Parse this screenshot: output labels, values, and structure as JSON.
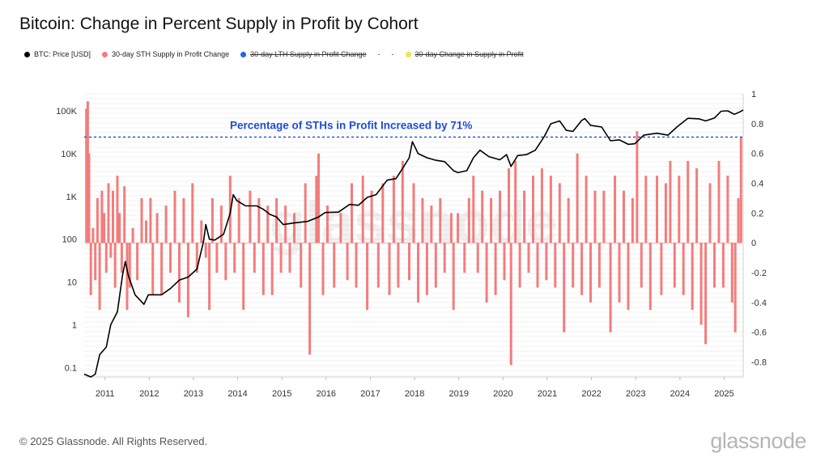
{
  "page": {
    "title": "Bitcoin: Change in Percent Supply in Profit by Cohort",
    "footer": "© 2025 Glassnode. All Rights Reserved.",
    "brand": "glassnode",
    "watermark": "glassnode"
  },
  "legend": [
    {
      "label": "BTC: Price [USD]",
      "color": "#000000",
      "disabled": false
    },
    {
      "label": "30-day STH Supply in Profit Change",
      "color": "#f47c7c",
      "disabled": false
    },
    {
      "label": "30-day LTH Supply in Profit Change",
      "color": "#2563eb",
      "disabled": true
    },
    {
      "label": "-",
      "color": "",
      "disabled": false,
      "separator": true
    },
    {
      "label": "-",
      "color": "",
      "disabled": false,
      "separator": true
    },
    {
      "label": "30-day Change in Supply in Profit",
      "color": "#f7e14b",
      "disabled": true
    }
  ],
  "chart_data": {
    "type": "line",
    "title": "Bitcoin: Change in Percent Supply in Profit by Cohort",
    "x_ticks": [
      "2011",
      "2012",
      "2013",
      "2014",
      "2015",
      "2016",
      "2017",
      "2018",
      "2019",
      "2020",
      "2021",
      "2022",
      "2023",
      "2024",
      "2025"
    ],
    "x_range": [
      2010.55,
      2025.45
    ],
    "left_axis": {
      "scale": "log",
      "ticks": [
        "0.1",
        "1",
        "10",
        "100",
        "1K",
        "10K",
        "100K"
      ],
      "tick_values": [
        0.1,
        1,
        10,
        100,
        1000,
        10000,
        100000
      ],
      "range": [
        0.06,
        250000
      ]
    },
    "right_axis": {
      "scale": "linear",
      "ticks": [
        "-0.8",
        "-0.6",
        "-0.4",
        "-0.2",
        "0",
        "0.2",
        "0.4",
        "0.6",
        "0.8",
        "1"
      ],
      "tick_values": [
        -0.8,
        -0.6,
        -0.4,
        -0.2,
        0,
        0.2,
        0.4,
        0.6,
        0.8,
        1
      ],
      "range": [
        -0.9,
        1.0
      ]
    },
    "annotation": {
      "text": "Percentage of STHs in Profit Increased by 71%",
      "value": 0.71,
      "color": "#1d4ed8"
    },
    "series": [
      {
        "name": "BTC: Price [USD]",
        "axis": "left",
        "color": "#000000",
        "points": [
          [
            2010.55,
            0.07
          ],
          [
            2010.7,
            0.06
          ],
          [
            2010.8,
            0.07
          ],
          [
            2010.9,
            0.2
          ],
          [
            2011.05,
            0.3
          ],
          [
            2011.15,
            1
          ],
          [
            2011.3,
            2
          ],
          [
            2011.42,
            15
          ],
          [
            2011.48,
            30
          ],
          [
            2011.55,
            14
          ],
          [
            2011.7,
            5
          ],
          [
            2011.9,
            3
          ],
          [
            2012.0,
            5
          ],
          [
            2012.3,
            5
          ],
          [
            2012.5,
            7
          ],
          [
            2012.7,
            11
          ],
          [
            2012.9,
            13
          ],
          [
            2013.1,
            20
          ],
          [
            2013.25,
            90
          ],
          [
            2013.3,
            220
          ],
          [
            2013.38,
            100
          ],
          [
            2013.5,
            95
          ],
          [
            2013.7,
            130
          ],
          [
            2013.85,
            400
          ],
          [
            2013.92,
            1100
          ],
          [
            2014.0,
            800
          ],
          [
            2014.2,
            600
          ],
          [
            2014.45,
            600
          ],
          [
            2014.6,
            500
          ],
          [
            2014.75,
            380
          ],
          [
            2014.9,
            330
          ],
          [
            2015.05,
            220
          ],
          [
            2015.3,
            240
          ],
          [
            2015.6,
            260
          ],
          [
            2015.85,
            330
          ],
          [
            2016.0,
            420
          ],
          [
            2016.3,
            430
          ],
          [
            2016.55,
            650
          ],
          [
            2016.75,
            620
          ],
          [
            2016.95,
            950
          ],
          [
            2017.15,
            1100
          ],
          [
            2017.4,
            2400
          ],
          [
            2017.6,
            2600
          ],
          [
            2017.75,
            4500
          ],
          [
            2017.9,
            8000
          ],
          [
            2017.97,
            19000
          ],
          [
            2018.1,
            10000
          ],
          [
            2018.3,
            8000
          ],
          [
            2018.5,
            7000
          ],
          [
            2018.7,
            6500
          ],
          [
            2018.9,
            4000
          ],
          [
            2019.0,
            3600
          ],
          [
            2019.2,
            4000
          ],
          [
            2019.35,
            8000
          ],
          [
            2019.5,
            12000
          ],
          [
            2019.7,
            8500
          ],
          [
            2019.95,
            7200
          ],
          [
            2020.1,
            9500
          ],
          [
            2020.2,
            5000
          ],
          [
            2020.35,
            9000
          ],
          [
            2020.55,
            9500
          ],
          [
            2020.75,
            12000
          ],
          [
            2020.95,
            25000
          ],
          [
            2021.1,
            50000
          ],
          [
            2021.3,
            58000
          ],
          [
            2021.45,
            35000
          ],
          [
            2021.6,
            33000
          ],
          [
            2021.8,
            60000
          ],
          [
            2021.87,
            66000
          ],
          [
            2022.0,
            46000
          ],
          [
            2022.25,
            42000
          ],
          [
            2022.45,
            20000
          ],
          [
            2022.65,
            21000
          ],
          [
            2022.85,
            16500
          ],
          [
            2023.0,
            17000
          ],
          [
            2023.2,
            27000
          ],
          [
            2023.5,
            30000
          ],
          [
            2023.75,
            27000
          ],
          [
            2023.95,
            42000
          ],
          [
            2024.2,
            67000
          ],
          [
            2024.45,
            65000
          ],
          [
            2024.6,
            58000
          ],
          [
            2024.8,
            68000
          ],
          [
            2024.95,
            98000
          ],
          [
            2025.1,
            100000
          ],
          [
            2025.25,
            83000
          ],
          [
            2025.38,
            95000
          ],
          [
            2025.45,
            105000
          ]
        ]
      },
      {
        "name": "30-day STH Supply in Profit Change",
        "axis": "right",
        "color": "#f47c7c",
        "points": [
          [
            2010.6,
            0.9
          ],
          [
            2010.63,
            0.95
          ],
          [
            2010.66,
            0.6
          ],
          [
            2010.7,
            -0.35
          ],
          [
            2010.75,
            0.1
          ],
          [
            2010.8,
            -0.25
          ],
          [
            2010.85,
            0.3
          ],
          [
            2010.9,
            -0.45
          ],
          [
            2010.95,
            0.35
          ],
          [
            2011.0,
            0.2
          ],
          [
            2011.05,
            -0.2
          ],
          [
            2011.1,
            0.4
          ],
          [
            2011.15,
            -0.1
          ],
          [
            2011.2,
            0.35
          ],
          [
            2011.25,
            -0.3
          ],
          [
            2011.3,
            0.45
          ],
          [
            2011.35,
            0.2
          ],
          [
            2011.4,
            -0.2
          ],
          [
            2011.46,
            0.38
          ],
          [
            2011.52,
            -0.45
          ],
          [
            2011.58,
            -0.3
          ],
          [
            2011.65,
            0.1
          ],
          [
            2011.75,
            -0.25
          ],
          [
            2011.85,
            0.3
          ],
          [
            2011.95,
            0.15
          ],
          [
            2012.05,
            0.3
          ],
          [
            2012.1,
            -0.35
          ],
          [
            2012.2,
            0.2
          ],
          [
            2012.3,
            -0.35
          ],
          [
            2012.4,
            0.25
          ],
          [
            2012.5,
            -0.2
          ],
          [
            2012.6,
            0.35
          ],
          [
            2012.7,
            -0.4
          ],
          [
            2012.8,
            0.3
          ],
          [
            2012.9,
            -0.5
          ],
          [
            2013.0,
            0.4
          ],
          [
            2013.1,
            -0.2
          ],
          [
            2013.2,
            0.15
          ],
          [
            2013.3,
            -0.1
          ],
          [
            2013.38,
            -0.45
          ],
          [
            2013.45,
            0.3
          ],
          [
            2013.55,
            -0.2
          ],
          [
            2013.65,
            0.25
          ],
          [
            2013.75,
            -0.25
          ],
          [
            2013.85,
            0.45
          ],
          [
            2013.95,
            -0.2
          ],
          [
            2014.05,
            0.3
          ],
          [
            2014.15,
            -0.45
          ],
          [
            2014.3,
            0.35
          ],
          [
            2014.4,
            -0.2
          ],
          [
            2014.5,
            0.3
          ],
          [
            2014.6,
            -0.35
          ],
          [
            2014.7,
            0.25
          ],
          [
            2014.8,
            -0.35
          ],
          [
            2014.9,
            0.3
          ],
          [
            2015.0,
            -0.2
          ],
          [
            2015.1,
            0.25
          ],
          [
            2015.2,
            -0.2
          ],
          [
            2015.3,
            0.2
          ],
          [
            2015.45,
            -0.3
          ],
          [
            2015.55,
            0.4
          ],
          [
            2015.65,
            -0.75
          ],
          [
            2015.8,
            0.45
          ],
          [
            2015.85,
            0.6
          ],
          [
            2015.95,
            -0.35
          ],
          [
            2016.05,
            0.25
          ],
          [
            2016.2,
            -0.3
          ],
          [
            2016.35,
            0.2
          ],
          [
            2016.5,
            -0.25
          ],
          [
            2016.6,
            0.4
          ],
          [
            2016.7,
            -0.3
          ],
          [
            2016.85,
            0.45
          ],
          [
            2016.95,
            -0.45
          ],
          [
            2017.05,
            0.35
          ],
          [
            2017.2,
            -0.3
          ],
          [
            2017.3,
            0.4
          ],
          [
            2017.45,
            -0.35
          ],
          [
            2017.55,
            0.45
          ],
          [
            2017.65,
            -0.3
          ],
          [
            2017.75,
            0.55
          ],
          [
            2017.9,
            -0.25
          ],
          [
            2018.0,
            0.4
          ],
          [
            2018.1,
            -0.4
          ],
          [
            2018.2,
            0.3
          ],
          [
            2018.3,
            -0.35
          ],
          [
            2018.4,
            0.25
          ],
          [
            2018.5,
            -0.3
          ],
          [
            2018.6,
            0.3
          ],
          [
            2018.7,
            -0.2
          ],
          [
            2018.85,
            0.2
          ],
          [
            2018.9,
            -0.45
          ],
          [
            2019.0,
            0.2
          ],
          [
            2019.15,
            -0.2
          ],
          [
            2019.25,
            0.3
          ],
          [
            2019.35,
            0.45
          ],
          [
            2019.45,
            -0.2
          ],
          [
            2019.55,
            0.35
          ],
          [
            2019.65,
            -0.4
          ],
          [
            2019.75,
            0.3
          ],
          [
            2019.85,
            -0.35
          ],
          [
            2019.95,
            0.35
          ],
          [
            2020.05,
            -0.25
          ],
          [
            2020.15,
            0.5
          ],
          [
            2020.2,
            -0.82
          ],
          [
            2020.3,
            0.55
          ],
          [
            2020.4,
            -0.3
          ],
          [
            2020.5,
            0.35
          ],
          [
            2020.6,
            -0.2
          ],
          [
            2020.7,
            0.45
          ],
          [
            2020.8,
            -0.3
          ],
          [
            2020.9,
            0.5
          ],
          [
            2021.0,
            -0.25
          ],
          [
            2021.1,
            0.45
          ],
          [
            2021.2,
            -0.3
          ],
          [
            2021.3,
            0.4
          ],
          [
            2021.4,
            -0.6
          ],
          [
            2021.5,
            0.3
          ],
          [
            2021.6,
            -0.3
          ],
          [
            2021.7,
            0.6
          ],
          [
            2021.8,
            -0.35
          ],
          [
            2021.9,
            0.45
          ],
          [
            2022.0,
            -0.4
          ],
          [
            2022.1,
            0.35
          ],
          [
            2022.2,
            -0.3
          ],
          [
            2022.3,
            0.35
          ],
          [
            2022.45,
            -0.6
          ],
          [
            2022.55,
            0.45
          ],
          [
            2022.65,
            -0.4
          ],
          [
            2022.75,
            0.35
          ],
          [
            2022.85,
            -0.45
          ],
          [
            2022.95,
            0.3
          ],
          [
            2023.05,
            0.75
          ],
          [
            2023.15,
            -0.3
          ],
          [
            2023.25,
            0.45
          ],
          [
            2023.35,
            -0.45
          ],
          [
            2023.5,
            0.45
          ],
          [
            2023.6,
            -0.35
          ],
          [
            2023.7,
            0.4
          ],
          [
            2023.8,
            0.55
          ],
          [
            2023.9,
            -0.3
          ],
          [
            2024.0,
            0.45
          ],
          [
            2024.1,
            -0.35
          ],
          [
            2024.2,
            0.55
          ],
          [
            2024.3,
            -0.45
          ],
          [
            2024.4,
            0.5
          ],
          [
            2024.5,
            -0.55
          ],
          [
            2024.6,
            -0.68
          ],
          [
            2024.7,
            0.4
          ],
          [
            2024.8,
            -0.3
          ],
          [
            2024.9,
            0.55
          ],
          [
            2025.0,
            -0.3
          ],
          [
            2025.1,
            0.45
          ],
          [
            2025.2,
            -0.4
          ],
          [
            2025.27,
            -0.6
          ],
          [
            2025.34,
            0.3
          ],
          [
            2025.4,
            0.71
          ]
        ]
      }
    ]
  }
}
